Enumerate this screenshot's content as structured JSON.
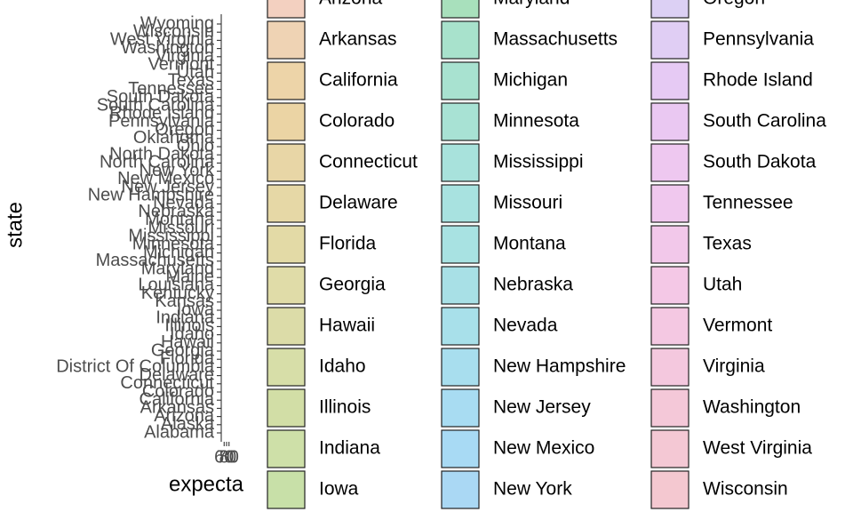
{
  "chart_data": {
    "type": "bar",
    "orientation": "horizontal",
    "xlabel": "expecta",
    "ylabel": "state",
    "categories": [
      "Alabama",
      "Alaska",
      "Arizona",
      "Arkansas",
      "California",
      "Colorado",
      "Connecticut",
      "Delaware",
      "District Of Columbia",
      "Florida",
      "Georgia",
      "Hawaii",
      "Idaho",
      "Illinois",
      "Indiana",
      "Iowa",
      "Kansas",
      "Kentucky",
      "Louisiana",
      "Maine",
      "Maryland",
      "Massachusetts",
      "Michigan",
      "Minnesota",
      "Mississippi",
      "Missouri",
      "Montana",
      "Nebraska",
      "Nevada",
      "New Hampshire",
      "New Jersey",
      "New Mexico",
      "New York",
      "North Carolina",
      "North Dakota",
      "Ohio",
      "Oklahoma",
      "Oregon",
      "Pennsylvania",
      "Rhode Island",
      "South Carolina",
      "South Dakota",
      "Tennessee",
      "Texas",
      "Utah",
      "Vermont",
      "Virginia",
      "Washington",
      "West Virginia",
      "Wisconsin",
      "Wyoming"
    ],
    "xlim": [
      59,
      81
    ],
    "xticks": [
      60,
      70,
      80
    ],
    "legend": {
      "columns": [
        [
          {
            "name": "Arizona",
            "color": "#f3d0c0"
          },
          {
            "name": "Arkansas",
            "color": "#efd3b4"
          },
          {
            "name": "California",
            "color": "#edd4a8"
          },
          {
            "name": "Colorado",
            "color": "#ebd4a4"
          },
          {
            "name": "Connecticut",
            "color": "#e8d6a6"
          },
          {
            "name": "Delaware",
            "color": "#e6d8a6"
          },
          {
            "name": "Florida",
            "color": "#e3daa6"
          },
          {
            "name": "Georgia",
            "color": "#e0dca8"
          },
          {
            "name": "Hawaii",
            "color": "#dcdca8"
          },
          {
            "name": "Idaho",
            "color": "#d7dea8"
          },
          {
            "name": "Illinois",
            "color": "#d2dea6"
          },
          {
            "name": "Indiana",
            "color": "#cee0a8"
          },
          {
            "name": "Iowa",
            "color": "#c8e0a8"
          }
        ],
        [
          {
            "name": "Maryland",
            "color": "#a8e0bc"
          },
          {
            "name": "Massachusetts",
            "color": "#a8e2cc"
          },
          {
            "name": "Michigan",
            "color": "#a8e2d0"
          },
          {
            "name": "Minnesota",
            "color": "#a8e2d4"
          },
          {
            "name": "Mississippi",
            "color": "#a8e2dc"
          },
          {
            "name": "Missouri",
            "color": "#a8e2e0"
          },
          {
            "name": "Montana",
            "color": "#a8e2e2"
          },
          {
            "name": "Nebraska",
            "color": "#a8e0e6"
          },
          {
            "name": "Nevada",
            "color": "#a8e0ea"
          },
          {
            "name": "New Hampshire",
            "color": "#a8deee"
          },
          {
            "name": "New Jersey",
            "color": "#a8dcf2"
          },
          {
            "name": "New Mexico",
            "color": "#a8daf4"
          },
          {
            "name": "New York",
            "color": "#aad8f4"
          }
        ],
        [
          {
            "name": "Oregon",
            "color": "#dcd0f4"
          },
          {
            "name": "Pennsylvania",
            "color": "#e0cef4"
          },
          {
            "name": "Rhode Island",
            "color": "#e6caf4"
          },
          {
            "name": "South Carolina",
            "color": "#eac8f2"
          },
          {
            "name": "South Dakota",
            "color": "#eec8f0"
          },
          {
            "name": "Tennessee",
            "color": "#f0c8ee"
          },
          {
            "name": "Texas",
            "color": "#f2c8ea"
          },
          {
            "name": "Utah",
            "color": "#f4c8e6"
          },
          {
            "name": "Vermont",
            "color": "#f4c8e2"
          },
          {
            "name": "Virginia",
            "color": "#f4c8de"
          },
          {
            "name": "Washington",
            "color": "#f4c8d8"
          },
          {
            "name": "West Virginia",
            "color": "#f4c8d4"
          },
          {
            "name": "Wisconsin",
            "color": "#f4c8d0"
          }
        ]
      ]
    }
  }
}
